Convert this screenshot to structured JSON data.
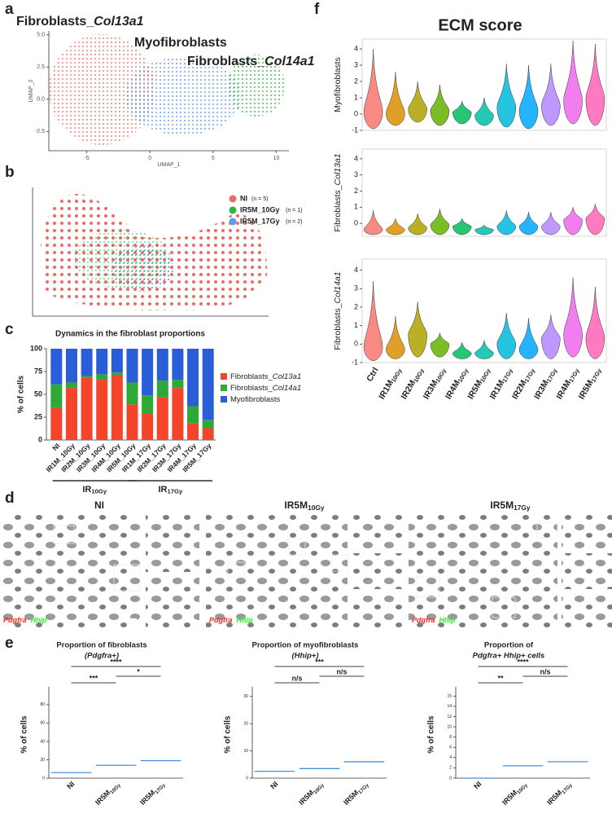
{
  "panel_labels": [
    "a",
    "b",
    "c",
    "d",
    "e",
    "f"
  ],
  "umap_a": {
    "type": "umap",
    "clusters": [
      {
        "name": "Fibroblasts_",
        "name_italic": "Col13a1",
        "color": "#ec6f67"
      },
      {
        "name": "Myofibroblasts",
        "color": "#5b95ec"
      },
      {
        "name": "Fibroblasts_",
        "name_italic": "Col14a1",
        "color": "#2fb43a"
      }
    ],
    "xlabel": "UMAP_1",
    "ylabel": "UMAP_2",
    "xlim": [
      -8,
      11
    ],
    "ylim": [
      -4,
      5.3
    ],
    "xticks": [
      -5,
      0,
      5,
      10
    ],
    "yticks": [
      -2.5,
      {
        "value": 0,
        "label": "0.0"
      },
      2.5,
      {
        "value": 5,
        "label": "5.0"
      }
    ]
  },
  "umap_b": {
    "type": "umap",
    "legend": [
      {
        "name": "NI",
        "note": "(n = 5)",
        "color": "#ec6b66"
      },
      {
        "name": "IR5M_10Gy",
        "note": "(n = 1)",
        "color": "#35b33f"
      },
      {
        "name": "IR5M_17Gy",
        "note": "(n = 2)",
        "color": "#5b9cf0"
      }
    ]
  },
  "stacked": {
    "type": "stacked_bar",
    "title": "Dynamics in the fibroblast proportions",
    "ylabel": "% of cells",
    "ylim": [
      0,
      100
    ],
    "yticks": [
      0,
      25,
      50,
      75,
      100
    ],
    "categories": [
      "NI",
      "IR1M_10Gy",
      "IR2M_10Gy",
      "IR3M_10Gy",
      "IR4M_10Gy",
      "IR5M_10Gy",
      "IR1M_17Gy",
      "IR2M_17Gy",
      "IR3M_17Gy",
      "IR4M_17Gy",
      "IR5M_17Gy"
    ],
    "series": [
      {
        "name": "Fibroblasts_",
        "name_italic": "Col13a1",
        "color": "#f4452a",
        "values": [
          35,
          57,
          68,
          66,
          71,
          39,
          29,
          47,
          57,
          18,
          13
        ]
      },
      {
        "name": "Fibroblasts_",
        "name_italic": "Col14a1",
        "color": "#2ea836",
        "values": [
          26,
          6,
          2,
          6,
          3,
          24,
          20,
          18,
          9,
          19,
          9
        ]
      },
      {
        "name": "Myofibroblasts",
        "color": "#2a5ed8",
        "values": [
          39,
          37,
          30,
          28,
          26,
          37,
          51,
          35,
          34,
          63,
          78
        ]
      }
    ],
    "groups": [
      {
        "text": "IR",
        "sub": "10Gy"
      },
      {
        "text": "IR",
        "sub": "17Gy"
      }
    ]
  },
  "micrographs": {
    "titles": [
      "NI",
      {
        "text": "IR5M",
        "sub": "10Gy"
      },
      {
        "text": "IR5M",
        "sub": "17Gy"
      }
    ],
    "stains": [
      {
        "name": "Pdgfra",
        "color": "#ff2a2a"
      },
      {
        "name": "Hhip",
        "color": "#2aff2a"
      }
    ]
  },
  "dots": [
    {
      "type": "dot",
      "title": [
        "Proportion of fibroblasts",
        "(Pdgfra+)"
      ],
      "ylabel": "% of cells",
      "categories": [
        "NI",
        {
          "text": "IR5M",
          "sub": "10Gy"
        },
        {
          "text": "IR5M",
          "sub": "17Gy"
        }
      ],
      "values": [
        6,
        14,
        19
      ],
      "color": "#4a8fd8",
      "ylim": [
        0,
        95
      ],
      "yticks": [
        0,
        20,
        40,
        60,
        80
      ],
      "significance": [
        "****",
        "***",
        "*"
      ]
    },
    {
      "type": "dot",
      "title": [
        "Proportion of myofibroblasts",
        "(Hhip+)"
      ],
      "ylabel": "% of cells",
      "categories": [
        "NI",
        {
          "text": "IR5M",
          "sub": "10Gy"
        },
        {
          "text": "IR5M",
          "sub": "17Gy"
        }
      ],
      "values": [
        2.5,
        3.5,
        6
      ],
      "color": "#4a8fd8",
      "ylim": [
        0,
        32
      ],
      "yticks": [
        0,
        10,
        20,
        30
      ],
      "significance": [
        "***",
        "n/s",
        "n/s"
      ]
    },
    {
      "type": "dot",
      "title": [
        "Proportion of",
        "Pdgfra+ Hhip+ cells"
      ],
      "ylabel": "% of cells",
      "categories": [
        "NI",
        {
          "text": "IR5M",
          "sub": "10Gy"
        },
        {
          "text": "IR5M",
          "sub": "17Gy"
        }
      ],
      "values": [
        0,
        2.4,
        3.2
      ],
      "color": "#4a8fd8",
      "ylim": [
        0,
        17
      ],
      "yticks": [
        0,
        2,
        4,
        6,
        8,
        10,
        12,
        14,
        16
      ],
      "significance": [
        "****",
        "**",
        "n/s"
      ]
    }
  ],
  "ecm": {
    "title": "ECM score",
    "categories": [
      "Ctrl",
      {
        "text": "IR1M",
        "sub": "10Gy"
      },
      {
        "text": "IR2M",
        "sub": "10Gy"
      },
      {
        "text": "IR3M",
        "sub": "10Gy"
      },
      {
        "text": "IR4M",
        "sub": "10Gy"
      },
      {
        "text": "IR5M",
        "sub": "10Gy"
      },
      {
        "text": "IR1M",
        "sub": "17Gy"
      },
      {
        "text": "IR2M",
        "sub": "17Gy"
      },
      {
        "text": "IR3M",
        "sub": "17Gy"
      },
      {
        "text": "IR4M",
        "sub": "17Gy"
      },
      {
        "text": "IR5M",
        "sub": "17Gy"
      }
    ],
    "colors": [
      "#F8766D",
      "#DB8E00",
      "#AEA200",
      "#64B200",
      "#00BD5C",
      "#00C1A7",
      "#00BADE",
      "#00A6FF",
      "#B385FF",
      "#EF67EB",
      "#FF63B6"
    ]
  },
  "chart_data": [
    {
      "type": "violin",
      "ylabel": "Myofibroblasts",
      "ylim": [
        -1,
        4.6
      ],
      "yticks": [
        -1,
        0,
        1,
        2,
        3,
        4
      ],
      "lower": [
        -0.9,
        -0.7,
        -0.5,
        -0.7,
        -0.6,
        -0.7,
        -0.8,
        -0.9,
        -0.7,
        -0.6,
        -0.7
      ],
      "values": [
        0.1,
        0,
        0.3,
        0.2,
        0.1,
        -0.1,
        0.4,
        0.2,
        0.5,
        0.8,
        0.9
      ],
      "upper": [
        4,
        2.6,
        2,
        1.8,
        0.8,
        1,
        3.1,
        3,
        3.1,
        4.5,
        4.3
      ]
    },
    {
      "type": "violin",
      "ylabel": "Fibroblasts_",
      "ylabel_italic": "Col13a1",
      "ylim": [
        -0.8,
        4.6
      ],
      "yticks": [
        0,
        1,
        2,
        3,
        4
      ],
      "lower": [
        -0.7,
        -0.7,
        -0.7,
        -0.7,
        -0.7,
        -0.7,
        -0.7,
        -0.7,
        -0.7,
        -0.7,
        -0.7
      ],
      "values": [
        -0.4,
        -0.4,
        -0.3,
        -0.1,
        -0.2,
        -0.4,
        -0.2,
        -0.2,
        -0.2,
        0.2,
        0.3
      ],
      "upper": [
        0.8,
        0.3,
        0.6,
        0.9,
        0.3,
        -0.1,
        0.8,
        0.7,
        0.7,
        1,
        1.2
      ]
    },
    {
      "type": "violin",
      "ylabel": "Fibroblasts_",
      "ylabel_italic": "Col14a1",
      "ylim": [
        -1,
        4.6
      ],
      "yticks": [
        -1,
        0,
        1,
        2,
        3,
        4
      ],
      "lower": [
        -0.9,
        -0.8,
        -0.7,
        -0.7,
        -0.8,
        -0.8,
        -0.8,
        -0.8,
        -0.8,
        -0.7,
        -0.8
      ],
      "values": [
        -0.2,
        -0.3,
        0.5,
        0,
        -0.5,
        -0.5,
        0,
        -0.3,
        0.3,
        0.5,
        0.3
      ],
      "upper": [
        3.4,
        1.5,
        2.3,
        0.6,
        0.1,
        0.2,
        1.7,
        1.4,
        1.6,
        3.6,
        3.1
      ]
    }
  ]
}
